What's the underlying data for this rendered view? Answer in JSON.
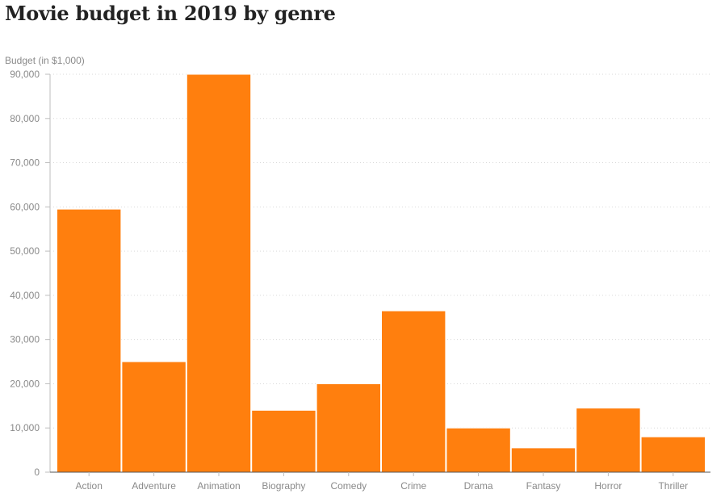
{
  "chart_data": {
    "type": "bar",
    "title": "Movie budget in 2019 by genre",
    "ylabel": "Budget (in $1,000)",
    "xlabel": "",
    "categories": [
      "Action",
      "Adventure",
      "Animation",
      "Biography",
      "Comedy",
      "Crime",
      "Drama",
      "Fantasy",
      "Horror",
      "Thriller"
    ],
    "values": [
      59500,
      25000,
      90000,
      14000,
      20000,
      36500,
      10000,
      5500,
      14500,
      8000
    ],
    "ylim": [
      0,
      90000
    ],
    "yticks": [
      0,
      10000,
      20000,
      30000,
      40000,
      50000,
      60000,
      70000,
      80000,
      90000
    ],
    "ytick_labels": [
      "0",
      "10,000",
      "20,000",
      "30,000",
      "40,000",
      "50,000",
      "60,000",
      "70,000",
      "80,000",
      "90,000"
    ],
    "grid": true,
    "bar_color": "#ff7f0e"
  }
}
